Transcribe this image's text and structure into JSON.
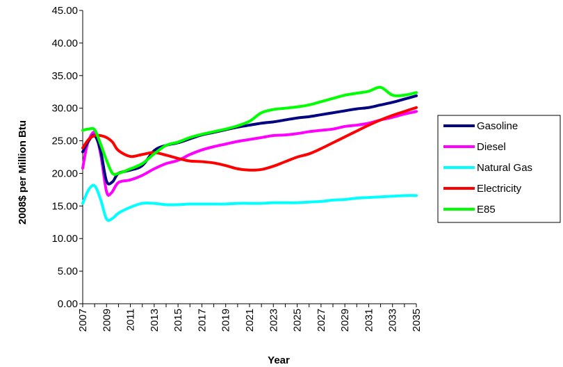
{
  "chart_data": {
    "type": "line",
    "title": "",
    "xlabel": "Year",
    "ylabel": "2008$ per Million Btu",
    "xlim": [
      2007,
      2035
    ],
    "ylim": [
      0,
      45
    ],
    "y_tick_labels": [
      "0.00",
      "5.00",
      "10.00",
      "15.00",
      "20.00",
      "25.00",
      "30.00",
      "35.00",
      "40.00",
      "45.00"
    ],
    "x_tick_labels": [
      "2007",
      "2009",
      "2011",
      "2013",
      "2015",
      "2017",
      "2019",
      "2021",
      "2023",
      "2025",
      "2027",
      "2029",
      "2031",
      "2033",
      "2035"
    ],
    "grid": false,
    "legend_position": "right",
    "series": [
      {
        "name": "Gasoline",
        "color": "#000080",
        "points": [
          [
            2007,
            23.3
          ],
          [
            2007.5,
            25.0
          ],
          [
            2008,
            25.8
          ],
          [
            2008.5,
            23.5
          ],
          [
            2009,
            18.8
          ],
          [
            2009.5,
            18.7
          ],
          [
            2010,
            20.0
          ],
          [
            2011,
            20.5
          ],
          [
            2012,
            21.2
          ],
          [
            2013,
            23.5
          ],
          [
            2014,
            24.3
          ],
          [
            2015,
            24.7
          ],
          [
            2016,
            25.3
          ],
          [
            2017,
            25.9
          ],
          [
            2018,
            26.3
          ],
          [
            2019,
            26.7
          ],
          [
            2020,
            27.1
          ],
          [
            2021,
            27.4
          ],
          [
            2022,
            27.7
          ],
          [
            2023,
            27.9
          ],
          [
            2024,
            28.2
          ],
          [
            2025,
            28.5
          ],
          [
            2026,
            28.7
          ],
          [
            2027,
            29.0
          ],
          [
            2028,
            29.3
          ],
          [
            2029,
            29.6
          ],
          [
            2030,
            29.9
          ],
          [
            2031,
            30.1
          ],
          [
            2032,
            30.5
          ],
          [
            2033,
            30.9
          ],
          [
            2034,
            31.4
          ],
          [
            2035,
            31.9
          ]
        ]
      },
      {
        "name": "Diesel",
        "color": "#ff00ff",
        "points": [
          [
            2007,
            20.8
          ],
          [
            2007.4,
            24.5
          ],
          [
            2008,
            26.3
          ],
          [
            2008.5,
            23.0
          ],
          [
            2009,
            17.2
          ],
          [
            2009.4,
            17.0
          ],
          [
            2010,
            18.6
          ],
          [
            2011,
            19.0
          ],
          [
            2012,
            19.7
          ],
          [
            2013,
            20.7
          ],
          [
            2014,
            21.5
          ],
          [
            2015,
            22.0
          ],
          [
            2016,
            22.9
          ],
          [
            2017,
            23.6
          ],
          [
            2018,
            24.1
          ],
          [
            2019,
            24.5
          ],
          [
            2020,
            24.9
          ],
          [
            2021,
            25.2
          ],
          [
            2022,
            25.5
          ],
          [
            2023,
            25.8
          ],
          [
            2024,
            25.9
          ],
          [
            2025,
            26.1
          ],
          [
            2026,
            26.4
          ],
          [
            2027,
            26.6
          ],
          [
            2028,
            26.8
          ],
          [
            2029,
            27.2
          ],
          [
            2030,
            27.4
          ],
          [
            2031,
            27.7
          ],
          [
            2032,
            28.2
          ],
          [
            2033,
            28.6
          ],
          [
            2034,
            29.1
          ],
          [
            2035,
            29.5
          ]
        ]
      },
      {
        "name": "Natural Gas",
        "color": "#00ffff",
        "points": [
          [
            2007,
            15.4
          ],
          [
            2007.5,
            17.5
          ],
          [
            2008,
            18.1
          ],
          [
            2008.5,
            16.0
          ],
          [
            2009,
            13.0
          ],
          [
            2009.5,
            13.1
          ],
          [
            2010,
            13.9
          ],
          [
            2011,
            14.8
          ],
          [
            2012,
            15.4
          ],
          [
            2013,
            15.4
          ],
          [
            2014,
            15.2
          ],
          [
            2015,
            15.2
          ],
          [
            2016,
            15.3
          ],
          [
            2017,
            15.3
          ],
          [
            2018,
            15.3
          ],
          [
            2019,
            15.3
          ],
          [
            2020,
            15.4
          ],
          [
            2021,
            15.4
          ],
          [
            2022,
            15.4
          ],
          [
            2023,
            15.5
          ],
          [
            2024,
            15.5
          ],
          [
            2025,
            15.5
          ],
          [
            2026,
            15.6
          ],
          [
            2027,
            15.7
          ],
          [
            2028,
            15.9
          ],
          [
            2029,
            16.0
          ],
          [
            2030,
            16.2
          ],
          [
            2031,
            16.3
          ],
          [
            2032,
            16.4
          ],
          [
            2033,
            16.5
          ],
          [
            2034,
            16.6
          ],
          [
            2035,
            16.6
          ]
        ]
      },
      {
        "name": "Electricity",
        "color": "#ff0000",
        "points": [
          [
            2007,
            23.9
          ],
          [
            2007.5,
            25.2
          ],
          [
            2008,
            25.8
          ],
          [
            2008.5,
            25.8
          ],
          [
            2009,
            25.5
          ],
          [
            2009.5,
            24.8
          ],
          [
            2010,
            23.5
          ],
          [
            2011,
            22.6
          ],
          [
            2012,
            22.9
          ],
          [
            2013,
            23.2
          ],
          [
            2014,
            22.8
          ],
          [
            2015,
            22.3
          ],
          [
            2016,
            21.9
          ],
          [
            2017,
            21.8
          ],
          [
            2018,
            21.6
          ],
          [
            2019,
            21.2
          ],
          [
            2020,
            20.7
          ],
          [
            2021,
            20.5
          ],
          [
            2022,
            20.6
          ],
          [
            2023,
            21.1
          ],
          [
            2024,
            21.8
          ],
          [
            2025,
            22.5
          ],
          [
            2026,
            23.0
          ],
          [
            2027,
            23.8
          ],
          [
            2028,
            24.7
          ],
          [
            2029,
            25.6
          ],
          [
            2030,
            26.5
          ],
          [
            2031,
            27.4
          ],
          [
            2032,
            28.2
          ],
          [
            2033,
            28.9
          ],
          [
            2034,
            29.5
          ],
          [
            2035,
            30.1
          ]
        ]
      },
      {
        "name": "E85",
        "color": "#00ff00",
        "points": [
          [
            2007,
            26.6
          ],
          [
            2007.5,
            26.8
          ],
          [
            2008,
            26.7
          ],
          [
            2008.5,
            24.5
          ],
          [
            2009,
            22.0
          ],
          [
            2009.5,
            20.0
          ],
          [
            2010,
            20.0
          ],
          [
            2011,
            20.7
          ],
          [
            2012,
            21.5
          ],
          [
            2013,
            23.0
          ],
          [
            2014,
            24.3
          ],
          [
            2015,
            24.8
          ],
          [
            2016,
            25.5
          ],
          [
            2017,
            26.0
          ],
          [
            2018,
            26.4
          ],
          [
            2019,
            26.8
          ],
          [
            2020,
            27.3
          ],
          [
            2021,
            28.0
          ],
          [
            2022,
            29.3
          ],
          [
            2023,
            29.8
          ],
          [
            2024,
            30.0
          ],
          [
            2025,
            30.2
          ],
          [
            2026,
            30.5
          ],
          [
            2027,
            31.0
          ],
          [
            2028,
            31.5
          ],
          [
            2029,
            32.0
          ],
          [
            2030,
            32.3
          ],
          [
            2031,
            32.6
          ],
          [
            2032,
            33.2
          ],
          [
            2033,
            32.0
          ],
          [
            2034,
            32.0
          ],
          [
            2035,
            32.4
          ]
        ]
      }
    ]
  }
}
